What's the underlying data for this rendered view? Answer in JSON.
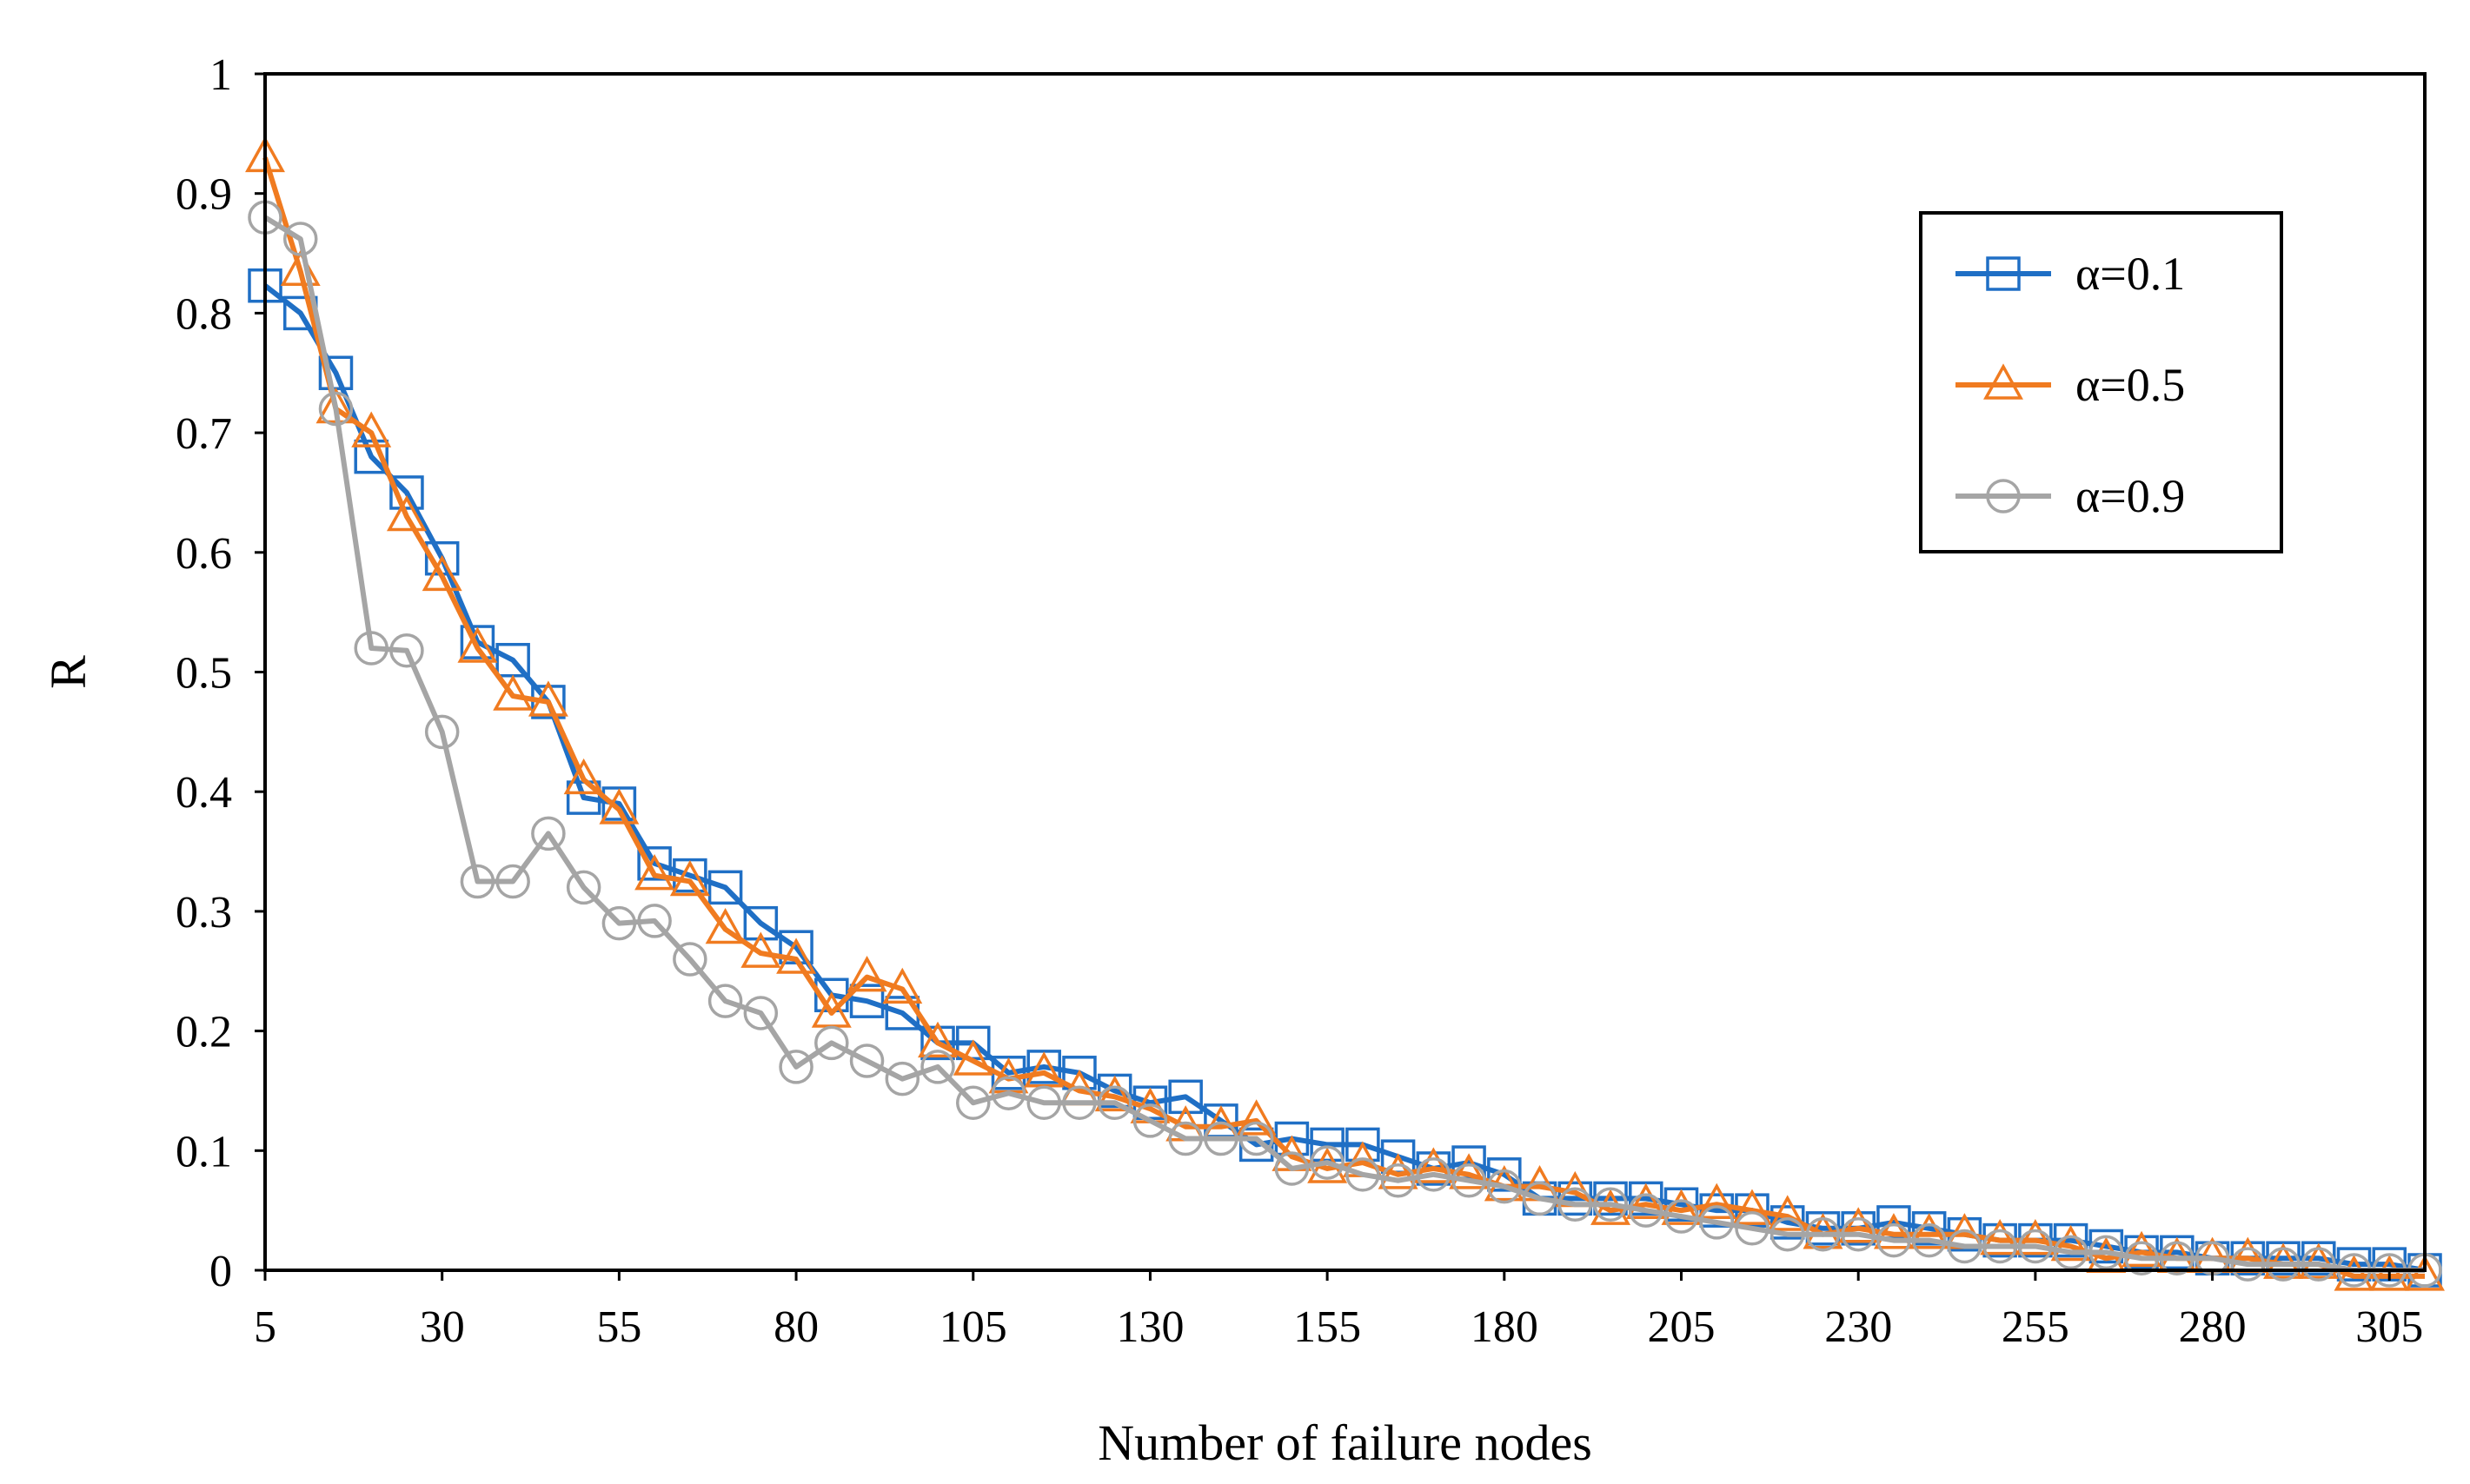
{
  "chart_data": {
    "type": "line",
    "title": "",
    "xlabel": "Number of failure nodes",
    "ylabel": "R",
    "xlim": [
      5,
      310
    ],
    "ylim": [
      0,
      1
    ],
    "x_ticks": [
      5,
      30,
      55,
      80,
      105,
      130,
      155,
      180,
      205,
      230,
      255,
      280,
      305
    ],
    "y_ticks": [
      0,
      0.1,
      0.2,
      0.3,
      0.4,
      0.5,
      0.6,
      0.7,
      0.8,
      0.9,
      1
    ],
    "y_tick_labels": [
      "0",
      "0.1",
      "0.2",
      "0.3",
      "0.4",
      "0.5",
      "0.6",
      "0.7",
      "0.8",
      "0.9",
      "1"
    ],
    "grid": false,
    "legend_position": "top-right",
    "x": [
      5,
      10,
      15,
      20,
      25,
      30,
      35,
      40,
      45,
      50,
      55,
      60,
      65,
      70,
      75,
      80,
      85,
      90,
      95,
      100,
      105,
      110,
      115,
      120,
      125,
      130,
      135,
      140,
      145,
      150,
      155,
      160,
      165,
      170,
      175,
      180,
      185,
      190,
      195,
      200,
      205,
      210,
      215,
      220,
      225,
      230,
      235,
      240,
      245,
      250,
      255,
      260,
      265,
      270,
      275,
      280,
      285,
      290,
      295,
      300,
      305,
      310
    ],
    "series": [
      {
        "name": "α=0.1",
        "color": "#1f6fc5",
        "marker": "square",
        "values": [
          0.823,
          0.8,
          0.75,
          0.68,
          0.65,
          0.595,
          0.525,
          0.51,
          0.475,
          0.395,
          0.39,
          0.34,
          0.33,
          0.32,
          0.29,
          0.27,
          0.23,
          0.225,
          0.215,
          0.19,
          0.19,
          0.165,
          0.17,
          0.165,
          0.15,
          0.14,
          0.145,
          0.125,
          0.105,
          0.11,
          0.105,
          0.105,
          0.095,
          0.085,
          0.09,
          0.08,
          0.06,
          0.06,
          0.06,
          0.06,
          0.055,
          0.05,
          0.05,
          0.04,
          0.035,
          0.035,
          0.04,
          0.035,
          0.03,
          0.025,
          0.025,
          0.025,
          0.02,
          0.015,
          0.015,
          0.01,
          0.01,
          0.01,
          0.01,
          0.005,
          0.005,
          0.0
        ]
      },
      {
        "name": "α=0.5",
        "color": "#f07b20",
        "marker": "triangle",
        "values": [
          0.93,
          0.835,
          0.72,
          0.7,
          0.63,
          0.58,
          0.52,
          0.48,
          0.475,
          0.41,
          0.385,
          0.33,
          0.325,
          0.285,
          0.265,
          0.26,
          0.215,
          0.245,
          0.235,
          0.19,
          0.175,
          0.16,
          0.165,
          0.15,
          0.145,
          0.135,
          0.12,
          0.12,
          0.125,
          0.095,
          0.085,
          0.09,
          0.08,
          0.085,
          0.08,
          0.07,
          0.07,
          0.065,
          0.05,
          0.055,
          0.05,
          0.055,
          0.05,
          0.045,
          0.03,
          0.035,
          0.03,
          0.03,
          0.03,
          0.025,
          0.025,
          0.02,
          0.01,
          0.015,
          0.01,
          0.01,
          0.01,
          0.005,
          0.005,
          -0.005,
          -0.005,
          -0.005
        ]
      },
      {
        "name": "α=0.9",
        "color": "#a5a5a5",
        "marker": "circle",
        "values": [
          0.88,
          0.862,
          0.72,
          0.52,
          0.518,
          0.45,
          0.325,
          0.325,
          0.365,
          0.32,
          0.29,
          0.292,
          0.26,
          0.225,
          0.215,
          0.17,
          0.19,
          0.175,
          0.16,
          0.17,
          0.14,
          0.148,
          0.14,
          0.14,
          0.14,
          0.125,
          0.11,
          0.11,
          0.11,
          0.085,
          0.09,
          0.08,
          0.075,
          0.08,
          0.075,
          0.07,
          0.06,
          0.055,
          0.055,
          0.05,
          0.045,
          0.04,
          0.035,
          0.03,
          0.03,
          0.03,
          0.025,
          0.025,
          0.02,
          0.02,
          0.02,
          0.015,
          0.015,
          0.01,
          0.01,
          0.01,
          0.005,
          0.005,
          0.005,
          0.0,
          0.0,
          0.0
        ]
      }
    ]
  }
}
